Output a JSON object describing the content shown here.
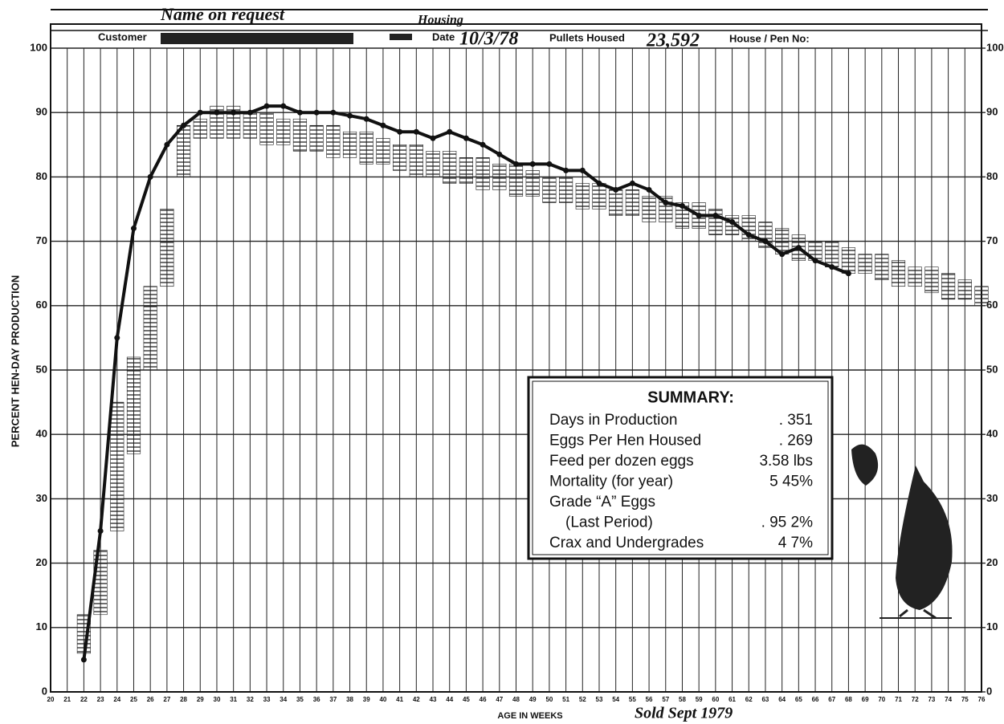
{
  "chart_data": {
    "type": "line",
    "header": {
      "name": "Name on request",
      "housing": "Housing",
      "customer_label": "Customer",
      "date_label": "Date",
      "date": "10/3/78",
      "pullets_label": "Pullets Housed",
      "pullets": "23,592",
      "house_label": "House / Pen No:"
    },
    "y_label": "PERCENT HEN-DAY PRODUCTION",
    "x_label": "AGE IN WEEKS",
    "annotation": "Sold Sept 1979",
    "x": [
      22,
      23,
      24,
      25,
      26,
      27,
      28,
      29,
      30,
      31,
      32,
      33,
      34,
      35,
      36,
      37,
      38,
      39,
      40,
      41,
      42,
      43,
      44,
      45,
      46,
      47,
      48,
      49,
      50,
      51,
      52,
      53,
      54,
      55,
      56,
      57,
      58,
      59,
      60,
      61,
      62,
      63,
      64,
      65,
      66,
      67,
      68,
      69,
      70,
      71,
      72,
      73,
      74,
      75,
      76
    ],
    "series": [
      {
        "color": "#111111",
        "values": [
          5,
          25,
          55,
          72,
          80,
          85,
          88,
          90,
          90,
          90,
          90,
          91,
          91,
          90,
          90,
          90,
          89.5,
          89,
          88,
          87,
          87,
          86,
          87,
          86,
          85,
          83.5,
          82,
          82,
          82,
          81,
          81,
          79,
          78,
          79,
          78,
          76,
          75.5,
          74,
          74,
          73,
          71,
          70,
          68,
          69,
          67,
          66,
          65,
          null,
          null,
          null,
          null,
          null,
          null,
          null,
          null
        ]
      }
    ],
    "standard": {
      "color": "#222222",
      "low": [
        6,
        12,
        25,
        37,
        50,
        63,
        80,
        86,
        86,
        86,
        86,
        85,
        85,
        84,
        84,
        83,
        83,
        82,
        82,
        81,
        80,
        80,
        79,
        79,
        78,
        78,
        77,
        77,
        76,
        76,
        75,
        75,
        74,
        74,
        73,
        73,
        72,
        72,
        71,
        71,
        70,
        69,
        68,
        67,
        67,
        66,
        65,
        65,
        64,
        63,
        63,
        62,
        61,
        61,
        60
      ],
      "high": [
        12,
        22,
        45,
        52,
        63,
        75,
        88,
        89,
        91,
        91,
        90,
        90,
        89,
        89,
        88,
        88,
        87,
        87,
        86,
        85,
        85,
        84,
        84,
        83,
        83,
        82,
        82,
        81,
        80,
        80,
        79,
        79,
        78,
        78,
        77,
        77,
        76,
        76,
        75,
        74,
        74,
        73,
        72,
        71,
        70,
        70,
        69,
        68,
        68,
        67,
        66,
        66,
        65,
        64,
        63
      ]
    },
    "xlim": [
      20,
      76
    ],
    "xticks": [
      20,
      21,
      22,
      23,
      24,
      25,
      26,
      27,
      28,
      29,
      30,
      31,
      32,
      33,
      34,
      35,
      36,
      37,
      38,
      39,
      40,
      41,
      42,
      43,
      44,
      45,
      46,
      47,
      48,
      49,
      50,
      51,
      52,
      53,
      54,
      55,
      56,
      57,
      58,
      59,
      60,
      61,
      62,
      63,
      64,
      65,
      66,
      67,
      68,
      69,
      70,
      71,
      72,
      73,
      74,
      75,
      76
    ],
    "ylim": [
      0,
      100
    ],
    "yticks": [
      0,
      10,
      20,
      30,
      40,
      50,
      60,
      70,
      80,
      90,
      100
    ],
    "y2lim": [
      0,
      100
    ],
    "y2ticks": [
      0,
      10,
      20,
      30,
      40,
      50,
      60,
      70,
      80,
      90,
      100
    ],
    "grid": true,
    "summary": {
      "title": "SUMMARY:",
      "rows": [
        [
          "Days in Production",
          ". 351"
        ],
        [
          "Eggs Per Hen Housed",
          ". 269"
        ],
        [
          "Feed per dozen eggs",
          "3.58 lbs"
        ],
        [
          "Mortality (for year)",
          "5 45%"
        ],
        [
          "Grade “A” Eggs"
        ],
        [
          "(Last Period)",
          ". 95 2%"
        ],
        [
          "Crax and Undergrades",
          "4 7%"
        ]
      ]
    }
  }
}
